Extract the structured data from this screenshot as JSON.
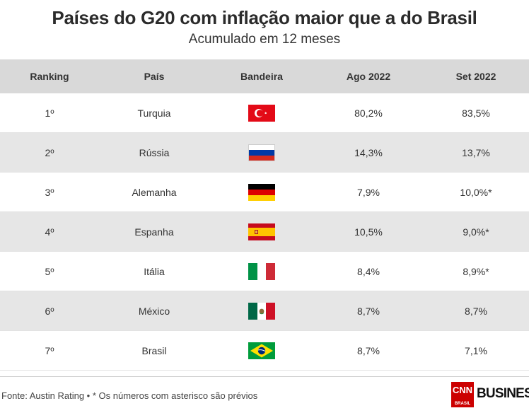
{
  "title": "Países do G20 com inflação maior que a do Brasil",
  "subtitle": "Acumulado em 12 meses",
  "headers": [
    "Ranking",
    "País",
    "Bandeira",
    "Ago 2022",
    "Set 2022"
  ],
  "chart_data": {
    "type": "table",
    "columns": [
      "Ranking",
      "País",
      "Bandeira",
      "Ago 2022",
      "Set 2022"
    ],
    "rows": [
      {
        "ranking": "1º",
        "pais": "Turquia",
        "flag": "turkey-flag-icon",
        "ago": "80,2%",
        "set": "83,5%"
      },
      {
        "ranking": "2º",
        "pais": "Rússia",
        "flag": "russia-flag-icon",
        "ago": "14,3%",
        "set": "13,7%"
      },
      {
        "ranking": "3º",
        "pais": "Alemanha",
        "flag": "germany-flag-icon",
        "ago": "7,9%",
        "set": "10,0%*"
      },
      {
        "ranking": "4º",
        "pais": "Espanha",
        "flag": "spain-flag-icon",
        "ago": "10,5%",
        "set": "9,0%*"
      },
      {
        "ranking": "5º",
        "pais": "Itália",
        "flag": "italy-flag-icon",
        "ago": "8,4%",
        "set": "8,9%*"
      },
      {
        "ranking": "6º",
        "pais": "México",
        "flag": "mexico-flag-icon",
        "ago": "8,7%",
        "set": "8,7%"
      },
      {
        "ranking": "7º",
        "pais": "Brasil",
        "flag": "brazil-flag-icon",
        "ago": "8,7%",
        "set": "7,1%"
      }
    ]
  },
  "colors": {
    "header_bg": "#d9d9d9",
    "alt_row_bg": "#e6e6e6",
    "brand_red": "#cc0000"
  },
  "footer": {
    "source": "Fonte: Austin Rating • * Os números com asterisco são prévios"
  },
  "logo": {
    "cnn": "CNN",
    "cnn_sub": "BRASIL",
    "business": "BUSINESS"
  }
}
